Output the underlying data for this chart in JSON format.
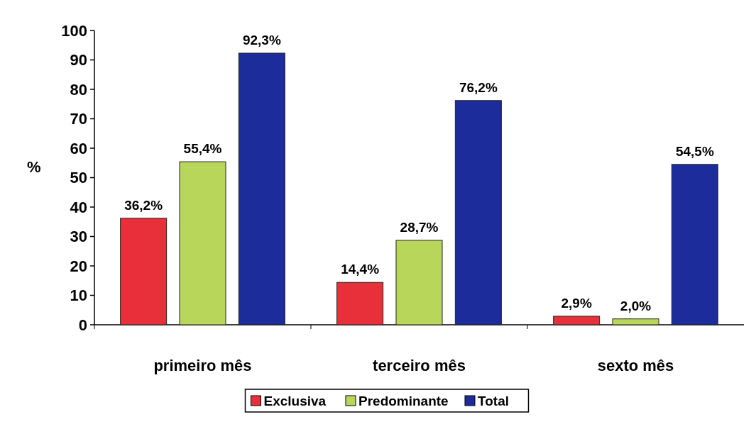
{
  "chart_data": {
    "type": "bar",
    "ylabel": "%",
    "categories": [
      "primeiro mês",
      "terceiro mês",
      "sexto mês"
    ],
    "series": [
      {
        "name": "Exclusiva",
        "color": "#e8303a",
        "values": [
          36.2,
          14.4,
          2.9
        ],
        "value_labels": [
          "36,2%",
          "14,4%",
          "2,9%"
        ]
      },
      {
        "name": "Predominante",
        "color": "#b8d75a",
        "values": [
          55.4,
          28.7,
          2.0
        ],
        "value_labels": [
          "55,4%",
          "28,7%",
          "2,0%"
        ]
      },
      {
        "name": "Total",
        "color": "#1c2c9a",
        "values": [
          92.3,
          76.2,
          54.5
        ],
        "value_labels": [
          "92,3%",
          "76,2%",
          "54,5%"
        ]
      }
    ],
    "ylim": [
      0,
      100
    ],
    "yticks": [
      0,
      10,
      20,
      30,
      40,
      50,
      60,
      70,
      80,
      90,
      100
    ],
    "legend": "bottom",
    "grid": false
  }
}
